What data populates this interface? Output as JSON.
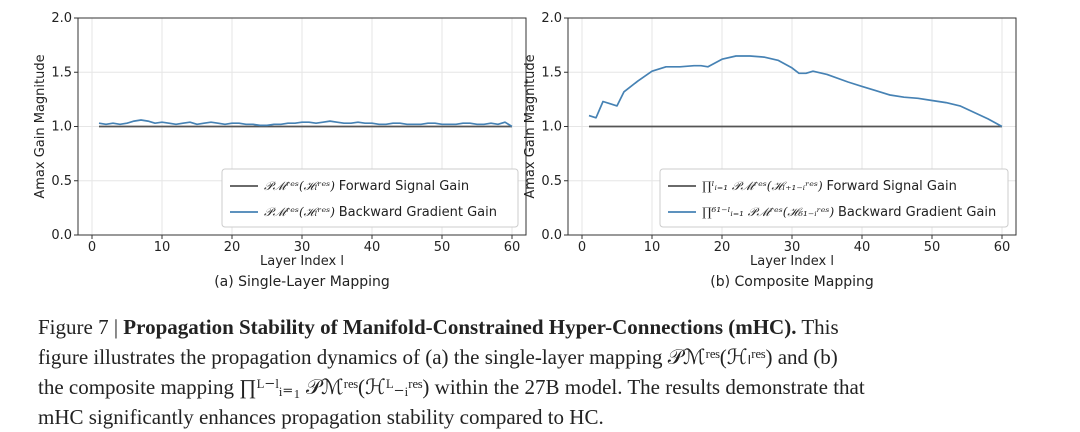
{
  "chart_data": [
    {
      "type": "line",
      "panel": "left",
      "subtitle": "(a) Single-Layer Mapping",
      "xlabel": "Layer Index l",
      "ylabel": "Amax Gain Magnitude",
      "xlim": [
        -2,
        62
      ],
      "ylim": [
        0.0,
        2.0
      ],
      "xticks": [
        0,
        10,
        20,
        30,
        40,
        50,
        60
      ],
      "yticks": [
        "0.0",
        "0.5",
        "1.0",
        "1.5",
        "2.0"
      ],
      "grid": true,
      "legend_position": "lower-right",
      "series": [
        {
          "name": "Forward Signal Gain",
          "legend_math": "𝒫ℳʳᵉˢ(ℋₗʳᵉˢ)",
          "color": "#555555",
          "x": [
            1,
            60
          ],
          "y": [
            1.0,
            1.0
          ]
        },
        {
          "name": "Backward Gradient Gain",
          "legend_math": "𝒫ℳʳᵉˢ(ℋₗʳᵉˢ)",
          "color": "#4682b4",
          "x": [
            1,
            2,
            3,
            4,
            5,
            6,
            7,
            8,
            9,
            10,
            11,
            12,
            13,
            14,
            15,
            16,
            17,
            18,
            19,
            20,
            21,
            22,
            23,
            24,
            25,
            26,
            27,
            28,
            29,
            30,
            31,
            32,
            33,
            34,
            35,
            36,
            37,
            38,
            39,
            40,
            41,
            42,
            43,
            44,
            45,
            46,
            47,
            48,
            49,
            50,
            51,
            52,
            53,
            54,
            55,
            56,
            57,
            58,
            59,
            60
          ],
          "y": [
            1.03,
            1.02,
            1.03,
            1.02,
            1.03,
            1.05,
            1.06,
            1.05,
            1.03,
            1.04,
            1.03,
            1.02,
            1.03,
            1.04,
            1.02,
            1.03,
            1.04,
            1.03,
            1.02,
            1.03,
            1.03,
            1.02,
            1.02,
            1.01,
            1.01,
            1.02,
            1.02,
            1.03,
            1.03,
            1.04,
            1.04,
            1.03,
            1.04,
            1.05,
            1.04,
            1.03,
            1.03,
            1.04,
            1.03,
            1.03,
            1.02,
            1.02,
            1.03,
            1.03,
            1.02,
            1.02,
            1.02,
            1.03,
            1.03,
            1.02,
            1.02,
            1.02,
            1.03,
            1.03,
            1.02,
            1.02,
            1.03,
            1.02,
            1.04,
            1.0
          ]
        }
      ]
    },
    {
      "type": "line",
      "panel": "right",
      "subtitle": "(b) Composite Mapping",
      "xlabel": "Layer Index l",
      "ylabel": "Amax Gain Magnitude",
      "xlim": [
        -2,
        62
      ],
      "ylim": [
        0.0,
        2.0
      ],
      "xticks": [
        0,
        10,
        20,
        30,
        40,
        50,
        60
      ],
      "yticks": [
        "0.0",
        "0.5",
        "1.0",
        "1.5",
        "2.0"
      ],
      "grid": true,
      "legend_position": "lower-right",
      "series": [
        {
          "name": "Forward Signal Gain",
          "legend_math": "∏ˡᵢ₌₁ 𝒫ℳʳᵉˢ(ℋₗ₊₁₋ᵢʳᵉˢ)",
          "color": "#555555",
          "x": [
            1,
            60
          ],
          "y": [
            1.0,
            1.0
          ]
        },
        {
          "name": "Backward Gradient Gain",
          "legend_math": "∏⁶¹⁻ˡᵢ₌₁ 𝒫ℳʳᵉˢ(ℋ₆₁₋ᵢʳᵉˢ)",
          "color": "#4682b4",
          "x": [
            1,
            2,
            3,
            4,
            5,
            6,
            8,
            10,
            12,
            14,
            16,
            17,
            18,
            20,
            22,
            24,
            26,
            28,
            30,
            31,
            32,
            33,
            35,
            38,
            40,
            42,
            44,
            46,
            48,
            50,
            52,
            54,
            56,
            58,
            60
          ],
          "y": [
            1.1,
            1.08,
            1.23,
            1.21,
            1.19,
            1.32,
            1.42,
            1.51,
            1.55,
            1.55,
            1.56,
            1.56,
            1.55,
            1.62,
            1.65,
            1.65,
            1.64,
            1.61,
            1.54,
            1.49,
            1.49,
            1.51,
            1.48,
            1.41,
            1.37,
            1.33,
            1.29,
            1.27,
            1.26,
            1.24,
            1.22,
            1.19,
            1.13,
            1.07,
            1.0
          ]
        }
      ]
    }
  ],
  "caption": {
    "figure_label": "Figure 7 |",
    "title": "Propagation Stability of Manifold-Constrained Hyper-Connections (mHC).",
    "line1_rest": "This",
    "line2": "figure illustrates the propagation dynamics of (a) the single-layer mapping 𝒫ℳʳᵉˢ(ℋₗʳᵉˢ) and (b)",
    "line3": "the composite mapping ∏ᴸ⁻ˡᵢ₌₁ 𝒫ℳʳᵉˢ(ℋᴸ₋ᵢʳᵉˢ) within the 27B model. The results demonstrate that",
    "line4": "mHC significantly enhances propagation stability compared to HC."
  }
}
